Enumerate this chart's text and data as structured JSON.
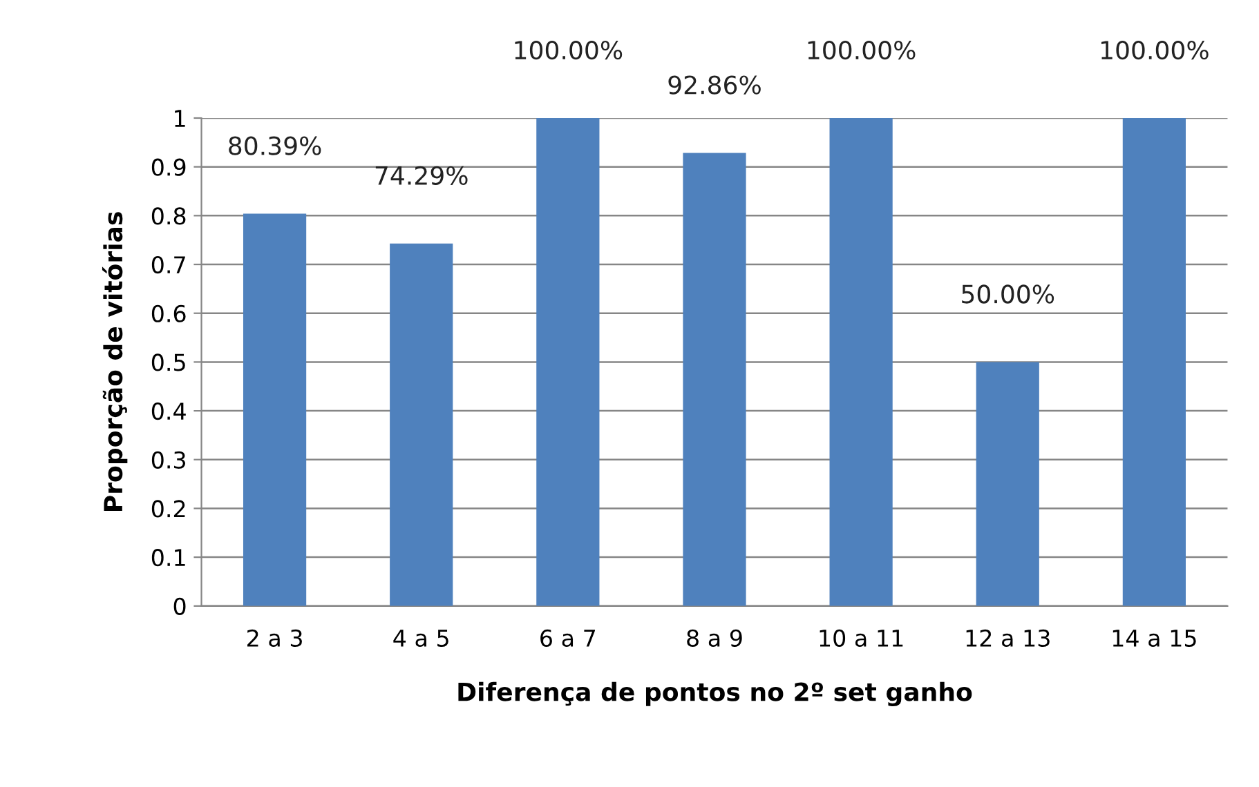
{
  "chart_data": {
    "type": "bar",
    "xlabel": "Diferença de pontos no 2º set ganho",
    "ylabel": "Proporção de vitórias",
    "categories": [
      "2 a 3",
      "4 a 5",
      "6 a 7",
      "8 a 9",
      "10 a 11",
      "12 a 13",
      "14 a 15"
    ],
    "values": [
      0.8039,
      0.7429,
      1.0,
      0.9286,
      1.0,
      0.5,
      1.0
    ],
    "value_labels": [
      "80.39%",
      "74.29%",
      "100.00%",
      "92.86%",
      "100.00%",
      "50.00%",
      "100.00%"
    ],
    "color": "#4f81bd",
    "ylim": [
      0,
      1
    ],
    "yticks": [
      0,
      0.1,
      0.2,
      0.3,
      0.4,
      0.5,
      0.6,
      0.7,
      0.8,
      0.9,
      1
    ],
    "grid": "y"
  }
}
